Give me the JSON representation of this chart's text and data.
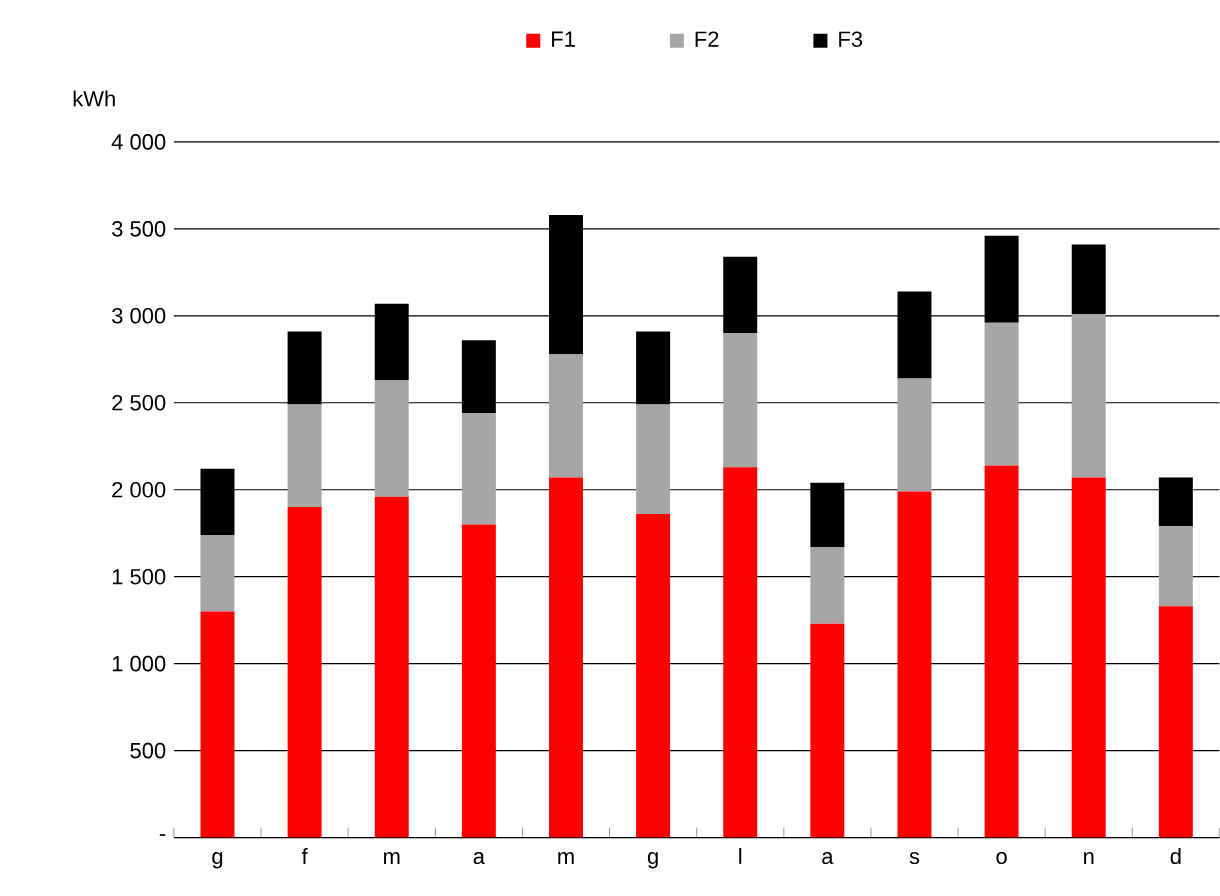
{
  "chart_data": {
    "type": "bar",
    "stacked": true,
    "ylabel": "kWh",
    "categories": [
      "g",
      "f",
      "m",
      "a",
      "m",
      "g",
      "l",
      "a",
      "s",
      "o",
      "n",
      "d"
    ],
    "series": [
      {
        "name": "F1",
        "color": "#ff0000",
        "values": [
          1300,
          1900,
          1960,
          1800,
          2070,
          1860,
          2130,
          1230,
          1990,
          2140,
          2070,
          1330
        ]
      },
      {
        "name": "F2",
        "color": "#a6a6a6",
        "values": [
          440,
          590,
          670,
          640,
          710,
          630,
          770,
          440,
          650,
          820,
          940,
          460
        ]
      },
      {
        "name": "F3",
        "color": "#000000",
        "values": [
          380,
          420,
          440,
          420,
          800,
          420,
          440,
          370,
          500,
          500,
          400,
          280
        ]
      }
    ],
    "ylim": [
      0,
      4000
    ],
    "yticks": [
      {
        "value": 0,
        "label": "-"
      },
      500,
      {
        "value": 1000,
        "label": "1 000"
      },
      {
        "value": 1500,
        "label": "1 500"
      },
      {
        "value": 2000,
        "label": "2 000"
      },
      {
        "value": 2500,
        "label": "2 500"
      },
      {
        "value": 3000,
        "label": "3 000"
      },
      {
        "value": 3500,
        "label": "3 500"
      },
      {
        "value": 4000,
        "label": "4 000"
      }
    ],
    "grid": "y",
    "legend": "top"
  }
}
